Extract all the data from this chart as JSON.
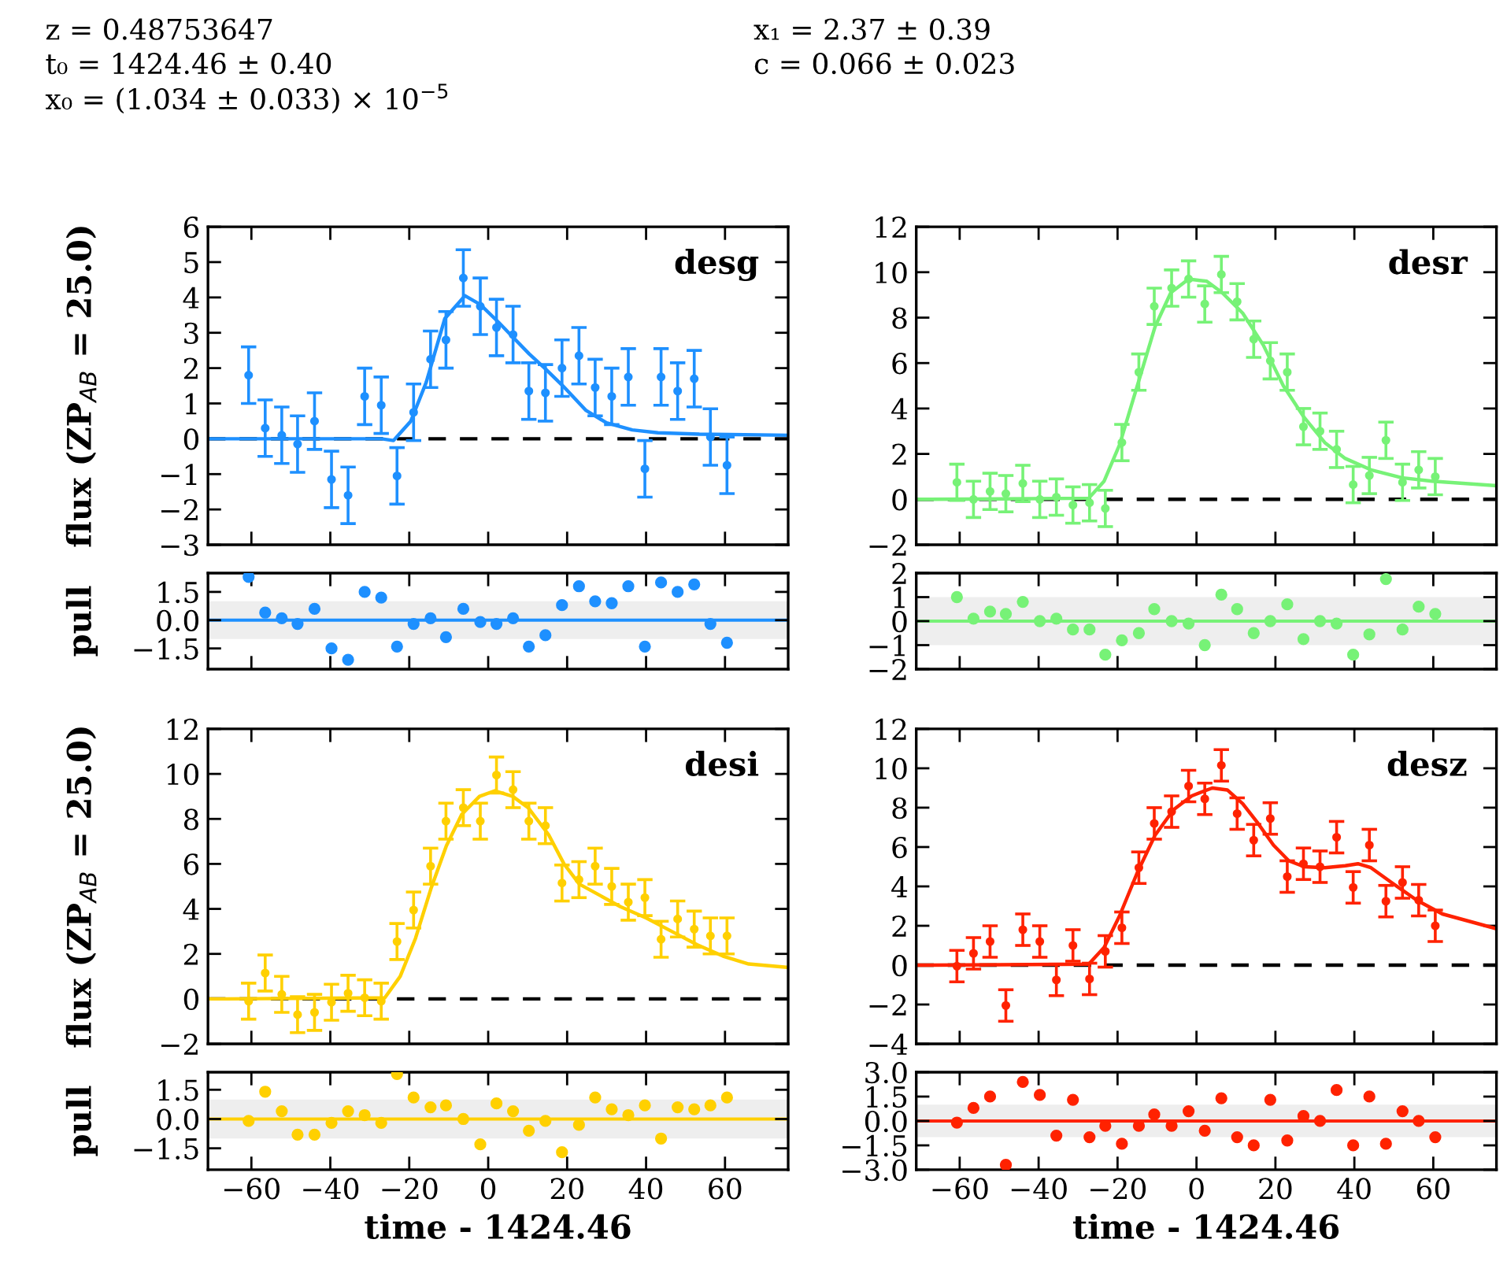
{
  "chart_data": [
    {
      "type": "scatter",
      "title": "desg",
      "ylabel": "flux (ZP$_{AB}$ = 25.0)",
      "marker": "circle",
      "tick_labels": "y",
      "xlim": [
        -71,
        76
      ],
      "ylim": [
        -3,
        6
      ],
      "xticks": [
        -60,
        -40,
        -20,
        0,
        20,
        40,
        60
      ],
      "yticks": [
        -3,
        -2,
        -1,
        0,
        1,
        2,
        3,
        4,
        5,
        6
      ],
      "annotations": [
        "z = 0.48753647",
        "t₀ = 1424.46 ± 0.40",
        "x₀ = (1.034 ± 0.033) × 10$^{−5}$",
        "x₁ = 2.37 ± 0.39",
        "c = 0.066 ± 0.023"
      ],
      "ref_lines": [
        {
          "axis": "y",
          "value": 0,
          "color": "#000000",
          "line_style": "dashed"
        }
      ],
      "series": [
        {
          "color": "#1e90ff",
          "x": [
            -60.7,
            -56.5,
            -52.3,
            -48.3,
            -44.0,
            -39.7,
            -35.5,
            -31.3,
            -27.1,
            -23.1,
            -18.9,
            -14.6,
            -10.7,
            -6.3,
            -2.0,
            2.1,
            6.3,
            10.3,
            14.5,
            18.7,
            23.0,
            27.1,
            31.3,
            35.5,
            39.7,
            43.8,
            48.0,
            52.2,
            56.3,
            60.5
          ],
          "values": [
            1.8,
            0.3,
            0.1,
            -0.15,
            0.5,
            -1.15,
            -1.6,
            1.2,
            0.95,
            -1.05,
            0.75,
            2.25,
            2.8,
            4.55,
            3.75,
            3.15,
            2.95,
            1.35,
            1.3,
            2.0,
            2.35,
            1.45,
            1.2,
            1.75,
            -0.85,
            1.75,
            1.35,
            1.7,
            0.05,
            -0.75
          ],
          "errors": [
            0.8,
            0.8,
            0.8,
            0.8,
            0.8,
            0.8,
            0.8,
            0.8,
            0.8,
            0.8,
            0.8,
            0.8,
            0.8,
            0.8,
            0.8,
            0.8,
            0.8,
            0.8,
            0.8,
            0.8,
            0.8,
            0.8,
            0.8,
            0.8,
            0.8,
            0.8,
            0.8,
            0.8,
            0.8,
            0.8
          ]
        },
        {
          "type": "line",
          "marker": "none",
          "color": "#1e90ff",
          "x": [
            -71,
            -66.5,
            -27,
            -24,
            -19.6,
            -15.7,
            -11,
            -5.9,
            -2,
            2.6,
            6.5,
            10.4,
            14.3,
            18.9,
            24.8,
            30,
            36.5,
            43,
            53.5,
            76
          ],
          "values": [
            0,
            0,
            0,
            -0.05,
            0.5,
            1.6,
            3.4,
            4.05,
            3.8,
            3.3,
            2.85,
            2.4,
            2.0,
            1.5,
            0.8,
            0.45,
            0.25,
            0.17,
            0.13,
            0.1
          ]
        }
      ]
    },
    {
      "type": "scatter",
      "title": "desr",
      "marker": "circle",
      "tick_labels": "y",
      "xlim": [
        -71,
        76
      ],
      "ylim": [
        -2,
        12
      ],
      "xticks": [
        -60,
        -40,
        -20,
        0,
        20,
        40,
        60
      ],
      "yticks": [
        -2,
        0,
        2,
        4,
        6,
        8,
        10,
        12
      ],
      "ref_lines": [
        {
          "axis": "y",
          "value": 0,
          "color": "#000000",
          "line_style": "dashed"
        }
      ],
      "series": [
        {
          "color": "#77f277",
          "x": [
            -60.7,
            -56.5,
            -52.3,
            -48.3,
            -44.0,
            -39.7,
            -35.5,
            -31.3,
            -27.1,
            -23.1,
            -18.9,
            -14.6,
            -10.7,
            -6.3,
            -2.0,
            2.1,
            6.3,
            10.3,
            14.5,
            18.7,
            23.0,
            27.1,
            31.3,
            35.5,
            39.7,
            43.8,
            48.0,
            52.2,
            56.3,
            60.5
          ],
          "values": [
            0.75,
            0.0,
            0.35,
            0.25,
            0.7,
            0.0,
            0.1,
            -0.25,
            -0.15,
            -0.4,
            2.5,
            5.6,
            8.5,
            9.3,
            9.7,
            8.6,
            9.9,
            8.7,
            7.05,
            6.1,
            5.6,
            3.2,
            3.0,
            2.2,
            0.65,
            1.05,
            2.6,
            0.75,
            1.3,
            1.0
          ],
          "errors": [
            0.8,
            0.8,
            0.8,
            0.8,
            0.8,
            0.8,
            0.8,
            0.8,
            0.8,
            0.8,
            0.8,
            0.8,
            0.8,
            0.8,
            0.8,
            0.8,
            0.8,
            0.8,
            0.8,
            0.8,
            0.8,
            0.8,
            0.8,
            0.8,
            0.8,
            0.8,
            0.8,
            0.8,
            0.8,
            0.8
          ]
        },
        {
          "type": "line",
          "marker": "none",
          "color": "#77f277",
          "x": [
            -71,
            -67.5,
            -27.3,
            -23.4,
            -19.5,
            -15,
            -10.5,
            -6.5,
            -2,
            2.6,
            6.5,
            11.7,
            16.9,
            22,
            27.3,
            32.5,
            37.7,
            44.2,
            52,
            59.7,
            76
          ],
          "values": [
            0,
            0,
            0.05,
            0.8,
            2.4,
            5.0,
            7.6,
            9.1,
            9.7,
            9.6,
            9.1,
            8.2,
            6.8,
            5.0,
            3.6,
            2.5,
            1.8,
            1.3,
            0.95,
            0.8,
            0.6
          ]
        }
      ]
    },
    {
      "type": "scatter",
      "ylabel": "pull",
      "marker": "circle",
      "tick_labels": "y",
      "xlim": [
        -71,
        76
      ],
      "ylim": [
        -2.6,
        2.5
      ],
      "xticks": [
        -60,
        -40,
        -20,
        0,
        20,
        40,
        60
      ],
      "yticks": [
        {
          "value": -1.5,
          "label": "−1.5"
        },
        {
          "value": 0,
          "label": "0.0"
        },
        {
          "value": 1.5,
          "label": "1.5"
        }
      ],
      "ref_lines": [
        {
          "axis": "y",
          "value": 0,
          "color": "#1e90ff",
          "line_style": "solid"
        }
      ],
      "bands": [
        {
          "axis": "y",
          "from": -1,
          "to": 1,
          "color": "#eeeeee"
        }
      ],
      "series": [
        {
          "color": "#1e90ff",
          "x": [
            -60.7,
            -56.5,
            -52.3,
            -48.3,
            -44.0,
            -39.7,
            -35.5,
            -31.3,
            -27.1,
            -23.1,
            -18.9,
            -14.6,
            -10.7,
            -6.3,
            -2.0,
            2.1,
            6.3,
            10.3,
            14.5,
            18.7,
            23.0,
            27.1,
            31.3,
            35.5,
            39.7,
            43.8,
            48.0,
            52.2,
            56.3,
            60.5
          ],
          "values": [
            2.3,
            0.4,
            0.1,
            -0.2,
            0.6,
            -1.5,
            -2.1,
            1.5,
            1.2,
            -1.4,
            -0.2,
            0.1,
            -0.9,
            0.6,
            -0.1,
            -0.2,
            0.1,
            -1.4,
            -0.8,
            0.8,
            1.8,
            1.0,
            0.9,
            1.8,
            -1.4,
            2.0,
            1.5,
            1.9,
            -0.2,
            -1.2
          ]
        }
      ]
    },
    {
      "type": "scatter",
      "marker": "circle",
      "tick_labels": "y",
      "xlim": [
        -71,
        76
      ],
      "ylim": [
        -2,
        2
      ],
      "xticks": [
        -60,
        -40,
        -20,
        0,
        20,
        40,
        60
      ],
      "yticks": [
        -2,
        -1,
        0,
        1,
        2
      ],
      "ref_lines": [
        {
          "axis": "y",
          "value": 0,
          "color": "#77f277",
          "line_style": "solid"
        }
      ],
      "bands": [
        {
          "axis": "y",
          "from": -1,
          "to": 1,
          "color": "#eeeeee"
        }
      ],
      "series": [
        {
          "color": "#77f277",
          "x": [
            -60.7,
            -56.5,
            -52.3,
            -48.3,
            -44.0,
            -39.7,
            -35.5,
            -31.3,
            -27.1,
            -23.1,
            -18.9,
            -14.6,
            -10.7,
            -6.3,
            -2.0,
            2.1,
            6.3,
            10.3,
            14.5,
            18.7,
            23.0,
            27.1,
            31.3,
            35.5,
            39.7,
            43.8,
            48.0,
            52.2,
            56.3,
            60.5
          ],
          "values": [
            1.0,
            0.1,
            0.4,
            0.3,
            0.8,
            0.0,
            0.1,
            -0.35,
            -0.35,
            -1.4,
            -0.8,
            -0.5,
            0.5,
            0.0,
            -0.1,
            -1.0,
            1.1,
            0.5,
            -0.5,
            0.0,
            0.7,
            -0.75,
            0.0,
            -0.1,
            -1.4,
            -0.55,
            1.75,
            -0.35,
            0.6,
            0.3
          ]
        }
      ]
    },
    {
      "type": "scatter",
      "title": "desi",
      "ylabel": "flux (ZP$_{AB}$ = 25.0)",
      "marker": "circle",
      "tick_labels": "y",
      "xlim": [
        -71,
        76
      ],
      "ylim": [
        -2,
        12
      ],
      "xticks": [
        -60,
        -40,
        -20,
        0,
        20,
        40,
        60
      ],
      "yticks": [
        -2,
        0,
        2,
        4,
        6,
        8,
        10,
        12
      ],
      "ref_lines": [
        {
          "axis": "y",
          "value": 0,
          "color": "#000000",
          "line_style": "dashed"
        }
      ],
      "series": [
        {
          "color": "#ffd000",
          "x": [
            -60.7,
            -56.5,
            -52.3,
            -48.3,
            -44.0,
            -39.7,
            -35.5,
            -31.3,
            -27.1,
            -23.1,
            -18.9,
            -14.6,
            -10.7,
            -6.3,
            -2.0,
            2.1,
            6.3,
            10.3,
            14.5,
            18.7,
            23.0,
            27.1,
            31.3,
            35.5,
            39.7,
            43.8,
            48.0,
            52.2,
            56.3,
            60.5
          ],
          "values": [
            -0.1,
            1.15,
            0.2,
            -0.7,
            -0.6,
            -0.15,
            0.25,
            0.05,
            -0.1,
            2.55,
            3.95,
            5.9,
            7.9,
            8.5,
            7.9,
            9.95,
            9.3,
            7.9,
            7.7,
            5.15,
            5.3,
            5.9,
            5.0,
            4.3,
            4.5,
            2.65,
            3.55,
            3.1,
            2.8,
            2.8
          ],
          "errors": [
            0.8,
            0.8,
            0.8,
            0.8,
            0.8,
            0.8,
            0.8,
            0.8,
            0.8,
            0.8,
            0.8,
            0.8,
            0.8,
            0.8,
            0.8,
            0.8,
            0.8,
            0.8,
            0.8,
            0.8,
            0.8,
            0.8,
            0.8,
            0.8,
            0.8,
            0.8,
            0.8,
            0.8,
            0.8,
            0.8
          ]
        },
        {
          "type": "line",
          "marker": "none",
          "color": "#ffd000",
          "x": [
            -71,
            -66.5,
            -26.2,
            -22.3,
            -18.4,
            -14.5,
            -10.6,
            -6.7,
            -2.2,
            1.7,
            6.2,
            10.1,
            15.3,
            19.2,
            23.1,
            28.3,
            33.5,
            40,
            46.5,
            53,
            59.5,
            66,
            76
          ],
          "values": [
            0,
            0,
            0.05,
            1.0,
            2.7,
            4.9,
            6.8,
            8.2,
            9.0,
            9.25,
            9.0,
            8.5,
            7.3,
            6.0,
            5.1,
            4.6,
            4.1,
            3.6,
            3.0,
            2.4,
            1.9,
            1.55,
            1.4
          ]
        }
      ]
    },
    {
      "type": "scatter",
      "title": "desz",
      "marker": "circle",
      "tick_labels": "y",
      "xlim": [
        -71,
        76
      ],
      "ylim": [
        -4,
        12
      ],
      "xticks": [
        -60,
        -40,
        -20,
        0,
        20,
        40,
        60
      ],
      "yticks": [
        -4,
        -2,
        0,
        2,
        4,
        6,
        8,
        10,
        12
      ],
      "ref_lines": [
        {
          "axis": "y",
          "value": 0,
          "color": "#000000",
          "line_style": "dashed"
        }
      ],
      "series": [
        {
          "color": "#ff2200",
          "x": [
            -60.7,
            -56.5,
            -52.3,
            -48.3,
            -44.0,
            -39.7,
            -35.5,
            -31.3,
            -27.1,
            -23.1,
            -18.9,
            -14.6,
            -10.7,
            -6.3,
            -2.0,
            2.1,
            6.3,
            10.3,
            14.5,
            18.7,
            23.0,
            27.1,
            31.3,
            35.5,
            39.7,
            43.8,
            48.0,
            52.2,
            56.3,
            60.5
          ],
          "values": [
            -0.05,
            0.6,
            1.2,
            -2.05,
            1.8,
            1.2,
            -0.75,
            1.0,
            -0.7,
            0.7,
            1.9,
            4.95,
            7.2,
            7.8,
            9.1,
            8.45,
            10.15,
            7.7,
            6.35,
            7.45,
            4.5,
            5.15,
            5.0,
            6.5,
            3.95,
            6.1,
            3.25,
            4.2,
            3.3,
            2.0
          ],
          "errors": [
            0.8,
            0.8,
            0.8,
            0.8,
            0.8,
            0.8,
            0.8,
            0.8,
            0.8,
            0.8,
            0.8,
            0.8,
            0.8,
            0.8,
            0.8,
            0.8,
            0.8,
            0.8,
            0.8,
            0.8,
            0.8,
            0.8,
            0.8,
            0.8,
            0.8,
            0.8,
            0.8,
            0.8,
            0.8,
            0.8
          ]
        },
        {
          "type": "line",
          "marker": "none",
          "color": "#ff2200",
          "x": [
            -71,
            -67.5,
            -27.3,
            -23.4,
            -19.5,
            -15,
            -10.5,
            -5.8,
            -1.2,
            4,
            7.8,
            11.7,
            15.6,
            19.5,
            23.4,
            27.3,
            32.5,
            37.7,
            40.9,
            44.2,
            49.4,
            55.8,
            62.3,
            76
          ],
          "values": [
            0,
            0,
            0.05,
            0.9,
            2.5,
            4.7,
            6.6,
            7.9,
            8.6,
            9.0,
            8.9,
            8.2,
            7.2,
            6.1,
            5.3,
            5.0,
            4.95,
            5.05,
            5.15,
            4.95,
            4.2,
            3.3,
            2.6,
            1.85
          ]
        }
      ]
    },
    {
      "type": "scatter",
      "ylabel": "pull",
      "xlabel": "time - 1424.46",
      "marker": "circle",
      "xlim": [
        -71,
        76
      ],
      "ylim": [
        -2.6,
        2.4
      ],
      "xticks": [
        -60,
        -40,
        -20,
        0,
        20,
        40,
        60
      ],
      "yticks": [
        {
          "value": -1.5,
          "label": "−1.5"
        },
        {
          "value": 0,
          "label": "0.0"
        },
        {
          "value": 1.5,
          "label": "1.5"
        }
      ],
      "ref_lines": [
        {
          "axis": "y",
          "value": 0,
          "color": "#ffd000",
          "line_style": "solid"
        }
      ],
      "bands": [
        {
          "axis": "y",
          "from": -1,
          "to": 1,
          "color": "#eeeeee"
        }
      ],
      "series": [
        {
          "color": "#ffd000",
          "x": [
            -60.7,
            -56.5,
            -52.3,
            -48.3,
            -44.0,
            -39.7,
            -35.5,
            -31.3,
            -27.1,
            -23.1,
            -18.9,
            -14.6,
            -10.7,
            -6.3,
            -2.0,
            2.1,
            6.3,
            10.3,
            14.5,
            18.7,
            23.0,
            27.1,
            31.3,
            35.5,
            39.7,
            43.8,
            48.0,
            52.2,
            56.3,
            60.5
          ],
          "values": [
            -0.1,
            1.4,
            0.4,
            -0.8,
            -0.8,
            -0.2,
            0.4,
            0.2,
            -0.2,
            2.3,
            1.1,
            0.6,
            0.7,
            0.0,
            -1.3,
            0.8,
            0.4,
            -0.6,
            -0.1,
            -1.7,
            -0.3,
            1.1,
            0.5,
            0.2,
            0.7,
            -1.0,
            0.6,
            0.5,
            0.7,
            1.1
          ]
        }
      ]
    },
    {
      "type": "scatter",
      "xlabel": "time - 1424.46",
      "marker": "circle",
      "xlim": [
        -71,
        76
      ],
      "ylim": [
        -3,
        3
      ],
      "xticks": [
        -60,
        -40,
        -20,
        0,
        20,
        40,
        60
      ],
      "yticks": [
        {
          "value": -3,
          "label": "−3.0"
        },
        {
          "value": -1.5,
          "label": "−1.5"
        },
        {
          "value": 0,
          "label": "0.0"
        },
        {
          "value": 1.5,
          "label": "1.5"
        },
        {
          "value": 3,
          "label": "3.0"
        }
      ],
      "ref_lines": [
        {
          "axis": "y",
          "value": 0,
          "color": "#ff2200",
          "line_style": "solid"
        }
      ],
      "bands": [
        {
          "axis": "y",
          "from": -1,
          "to": 1,
          "color": "#eeeeee"
        }
      ],
      "series": [
        {
          "color": "#ff2200",
          "x": [
            -60.7,
            -56.5,
            -52.3,
            -48.3,
            -44.0,
            -39.7,
            -35.5,
            -31.3,
            -27.1,
            -23.1,
            -18.9,
            -14.6,
            -10.7,
            -6.3,
            -2.0,
            2.1,
            6.3,
            10.3,
            14.5,
            18.7,
            23.0,
            27.1,
            31.3,
            35.5,
            39.7,
            43.8,
            48.0,
            52.2,
            56.3,
            60.5
          ],
          "values": [
            -0.1,
            0.8,
            1.5,
            -2.7,
            2.4,
            1.6,
            -0.9,
            1.3,
            -1.0,
            -0.3,
            -1.4,
            -0.3,
            0.4,
            -0.3,
            0.6,
            -0.6,
            1.4,
            -1.0,
            -1.5,
            1.3,
            -1.2,
            0.3,
            0.0,
            1.9,
            -1.5,
            1.5,
            -1.4,
            0.6,
            0.0,
            -1.0
          ]
        }
      ]
    }
  ]
}
